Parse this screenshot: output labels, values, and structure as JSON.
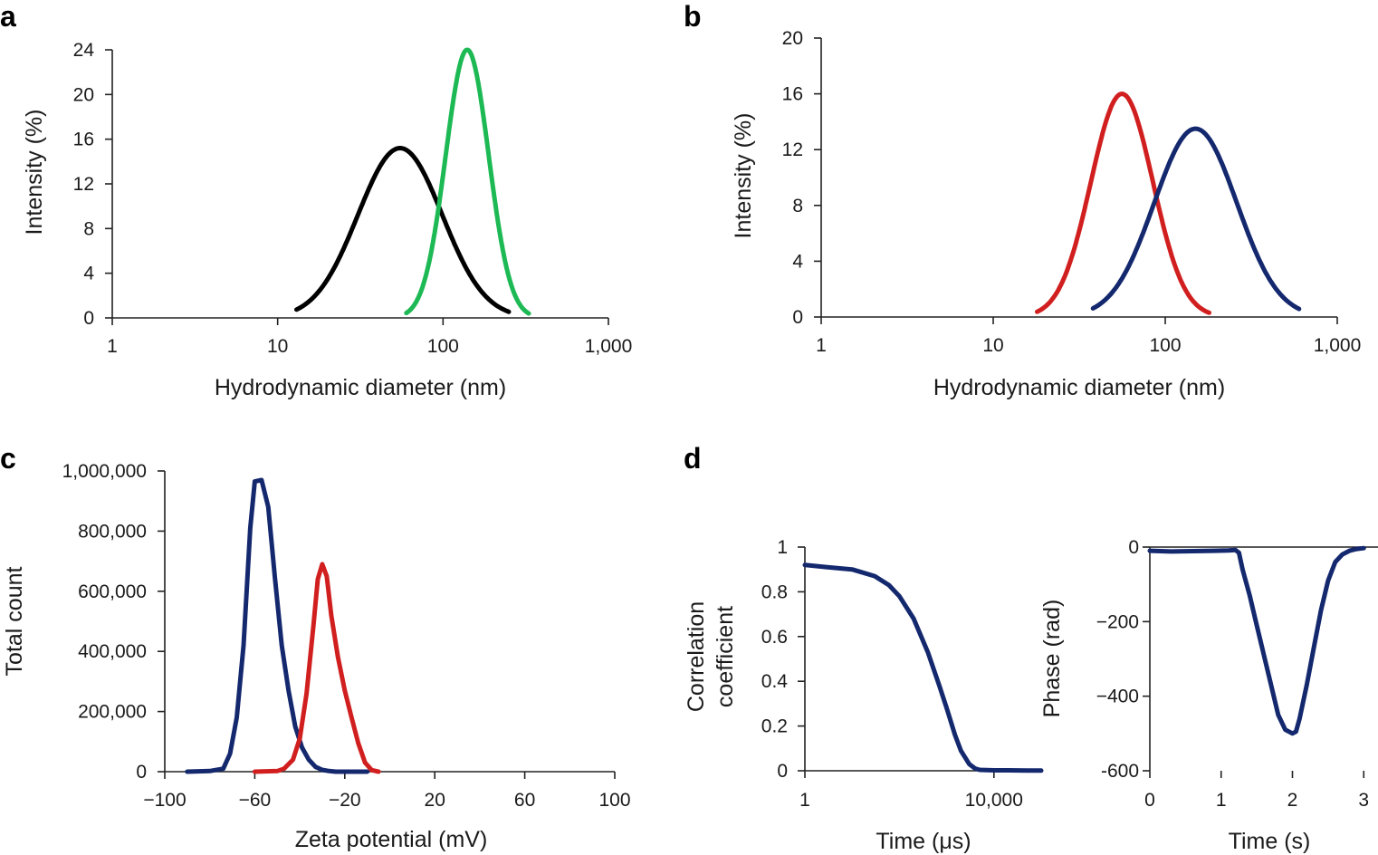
{
  "chart_data": [
    {
      "panel": "a",
      "type": "line",
      "xscale": "log",
      "xlabel": "Hydrodynamic diameter (nm)",
      "ylabel": "Intensity (%)",
      "xlim": [
        1,
        1000
      ],
      "ylim": [
        0,
        24
      ],
      "xticks": [
        1,
        10,
        100,
        1000
      ],
      "xtick_labels": [
        "1",
        "10",
        "100",
        "1,000"
      ],
      "yticks": [
        0,
        4,
        8,
        12,
        16,
        20,
        24
      ],
      "ytick_labels": [
        "0",
        "4",
        "8",
        "12",
        "16",
        "20",
        "24"
      ],
      "series": [
        {
          "name": "black",
          "color": "#000000",
          "peak": {
            "x": 55,
            "y": 15.2
          },
          "sigma": 0.255,
          "range": [
            13,
            250
          ]
        },
        {
          "name": "green",
          "color": "#1db954",
          "peak": {
            "x": 140,
            "y": 24
          },
          "sigma": 0.13,
          "range": [
            60,
            330
          ]
        }
      ]
    },
    {
      "panel": "b",
      "type": "line",
      "xscale": "log",
      "xlabel": "Hydrodynamic diameter (nm)",
      "ylabel": "Intensity (%)",
      "xlim": [
        1,
        1000
      ],
      "ylim": [
        0,
        20
      ],
      "xticks": [
        1,
        10,
        100,
        1000
      ],
      "xtick_labels": [
        "1",
        "10",
        "100",
        "1,000"
      ],
      "yticks": [
        0,
        4,
        8,
        12,
        16,
        20
      ],
      "ytick_labels": [
        "0",
        "4",
        "8",
        "12",
        "16",
        "20"
      ],
      "series": [
        {
          "name": "red",
          "color": "#d11f1f",
          "peak": {
            "x": 56,
            "y": 16
          },
          "sigma": 0.18,
          "range": [
            18,
            180
          ]
        },
        {
          "name": "navy",
          "color": "#14286e",
          "peak": {
            "x": 150,
            "y": 13.5
          },
          "sigma": 0.24,
          "range": [
            38,
            600
          ]
        }
      ]
    },
    {
      "panel": "c",
      "type": "line",
      "xscale": "linear",
      "xlabel": "Zeta potential (mV)",
      "ylabel": "Total count",
      "xlim": [
        -100,
        100
      ],
      "ylim": [
        0,
        1000000
      ],
      "xticks": [
        -100,
        -60,
        -20,
        20,
        60,
        100
      ],
      "xtick_labels": [
        "−100",
        "−60",
        "−20",
        "20",
        "60",
        "100"
      ],
      "yticks": [
        0,
        200000,
        400000,
        600000,
        800000,
        1000000
      ],
      "ytick_labels": [
        "0",
        "200,000",
        "400,000",
        "600,000",
        "800,000",
        "1,000,000"
      ],
      "series": [
        {
          "name": "navy",
          "color": "#14286e",
          "x": [
            -90,
            -80,
            -74,
            -71,
            -68,
            -65,
            -62,
            -60,
            -57,
            -54,
            -51,
            -48,
            -45,
            -42,
            -39,
            -36,
            -33,
            -30,
            -27,
            -24,
            -20,
            -15,
            -10
          ],
          "y": [
            0,
            2000,
            10000,
            60000,
            180000,
            420000,
            810000,
            965000,
            970000,
            880000,
            640000,
            420000,
            270000,
            150000,
            80000,
            40000,
            16000,
            6000,
            2000,
            0,
            0,
            0,
            0
          ]
        },
        {
          "name": "red",
          "color": "#d11f1f",
          "x": [
            -60,
            -50,
            -47,
            -43,
            -40,
            -37,
            -34,
            -32,
            -30,
            -28,
            -26,
            -23,
            -20,
            -17,
            -14,
            -11,
            -8,
            -5
          ],
          "y": [
            0,
            2000,
            10000,
            40000,
            110000,
            260000,
            480000,
            640000,
            690000,
            650000,
            520000,
            380000,
            270000,
            180000,
            95000,
            30000,
            5000,
            0
          ]
        }
      ]
    },
    {
      "panel": "d-left",
      "type": "line",
      "xscale": "log",
      "xlabel": "Time (μs)",
      "ylabel_lines": [
        "Correlation",
        "coefficient"
      ],
      "xlim": [
        1,
        100000
      ],
      "ylim": [
        0,
        1
      ],
      "xticks": [
        1,
        10000
      ],
      "xtick_labels": [
        "1",
        "10,000"
      ],
      "yticks": [
        0,
        0.2,
        0.4,
        0.6,
        0.8,
        1
      ],
      "ytick_labels": [
        "0",
        "0.2",
        "0.4",
        "0.6",
        "0.8",
        "1"
      ],
      "series": [
        {
          "name": "navy",
          "color": "#14286e",
          "x": [
            1,
            3,
            10,
            30,
            60,
            100,
            200,
            400,
            700,
            1000,
            1500,
            2000,
            3000,
            4000,
            5000,
            7000,
            10000,
            20000,
            50000,
            100000
          ],
          "y": [
            0.92,
            0.91,
            0.9,
            0.87,
            0.83,
            0.78,
            0.68,
            0.53,
            0.38,
            0.28,
            0.16,
            0.09,
            0.03,
            0.01,
            0.004,
            0.003,
            0.002,
            0.002,
            0.001,
            0.001
          ]
        }
      ]
    },
    {
      "panel": "d-right",
      "type": "line",
      "xscale": "linear",
      "xlabel": "Time (s)",
      "ylabel": "Phase (rad)",
      "xlim": [
        0,
        3.2
      ],
      "ylim": [
        -600,
        0
      ],
      "xticks": [
        0,
        1,
        2,
        3
      ],
      "xtick_labels": [
        "0",
        "1",
        "2",
        "3"
      ],
      "yticks": [
        0,
        -200,
        -400,
        -600
      ],
      "ytick_labels": [
        "0",
        "−200",
        "−400",
        "-600"
      ],
      "series": [
        {
          "name": "navy",
          "color": "#14286e",
          "x": [
            0,
            0.3,
            0.6,
            0.9,
            1.1,
            1.2,
            1.25,
            1.3,
            1.4,
            1.5,
            1.6,
            1.7,
            1.8,
            1.9,
            2.0,
            2.05,
            2.1,
            2.2,
            2.3,
            2.4,
            2.5,
            2.6,
            2.7,
            2.8,
            2.9,
            3.0
          ],
          "y": [
            -10,
            -12,
            -11,
            -10,
            -9,
            -8,
            -15,
            -60,
            -130,
            -210,
            -290,
            -370,
            -450,
            -490,
            -500,
            -495,
            -460,
            -370,
            -270,
            -170,
            -90,
            -40,
            -20,
            -10,
            -5,
            -3
          ]
        }
      ]
    }
  ],
  "panel_labels": {
    "a": "a",
    "b": "b",
    "c": "c",
    "d": "d"
  }
}
